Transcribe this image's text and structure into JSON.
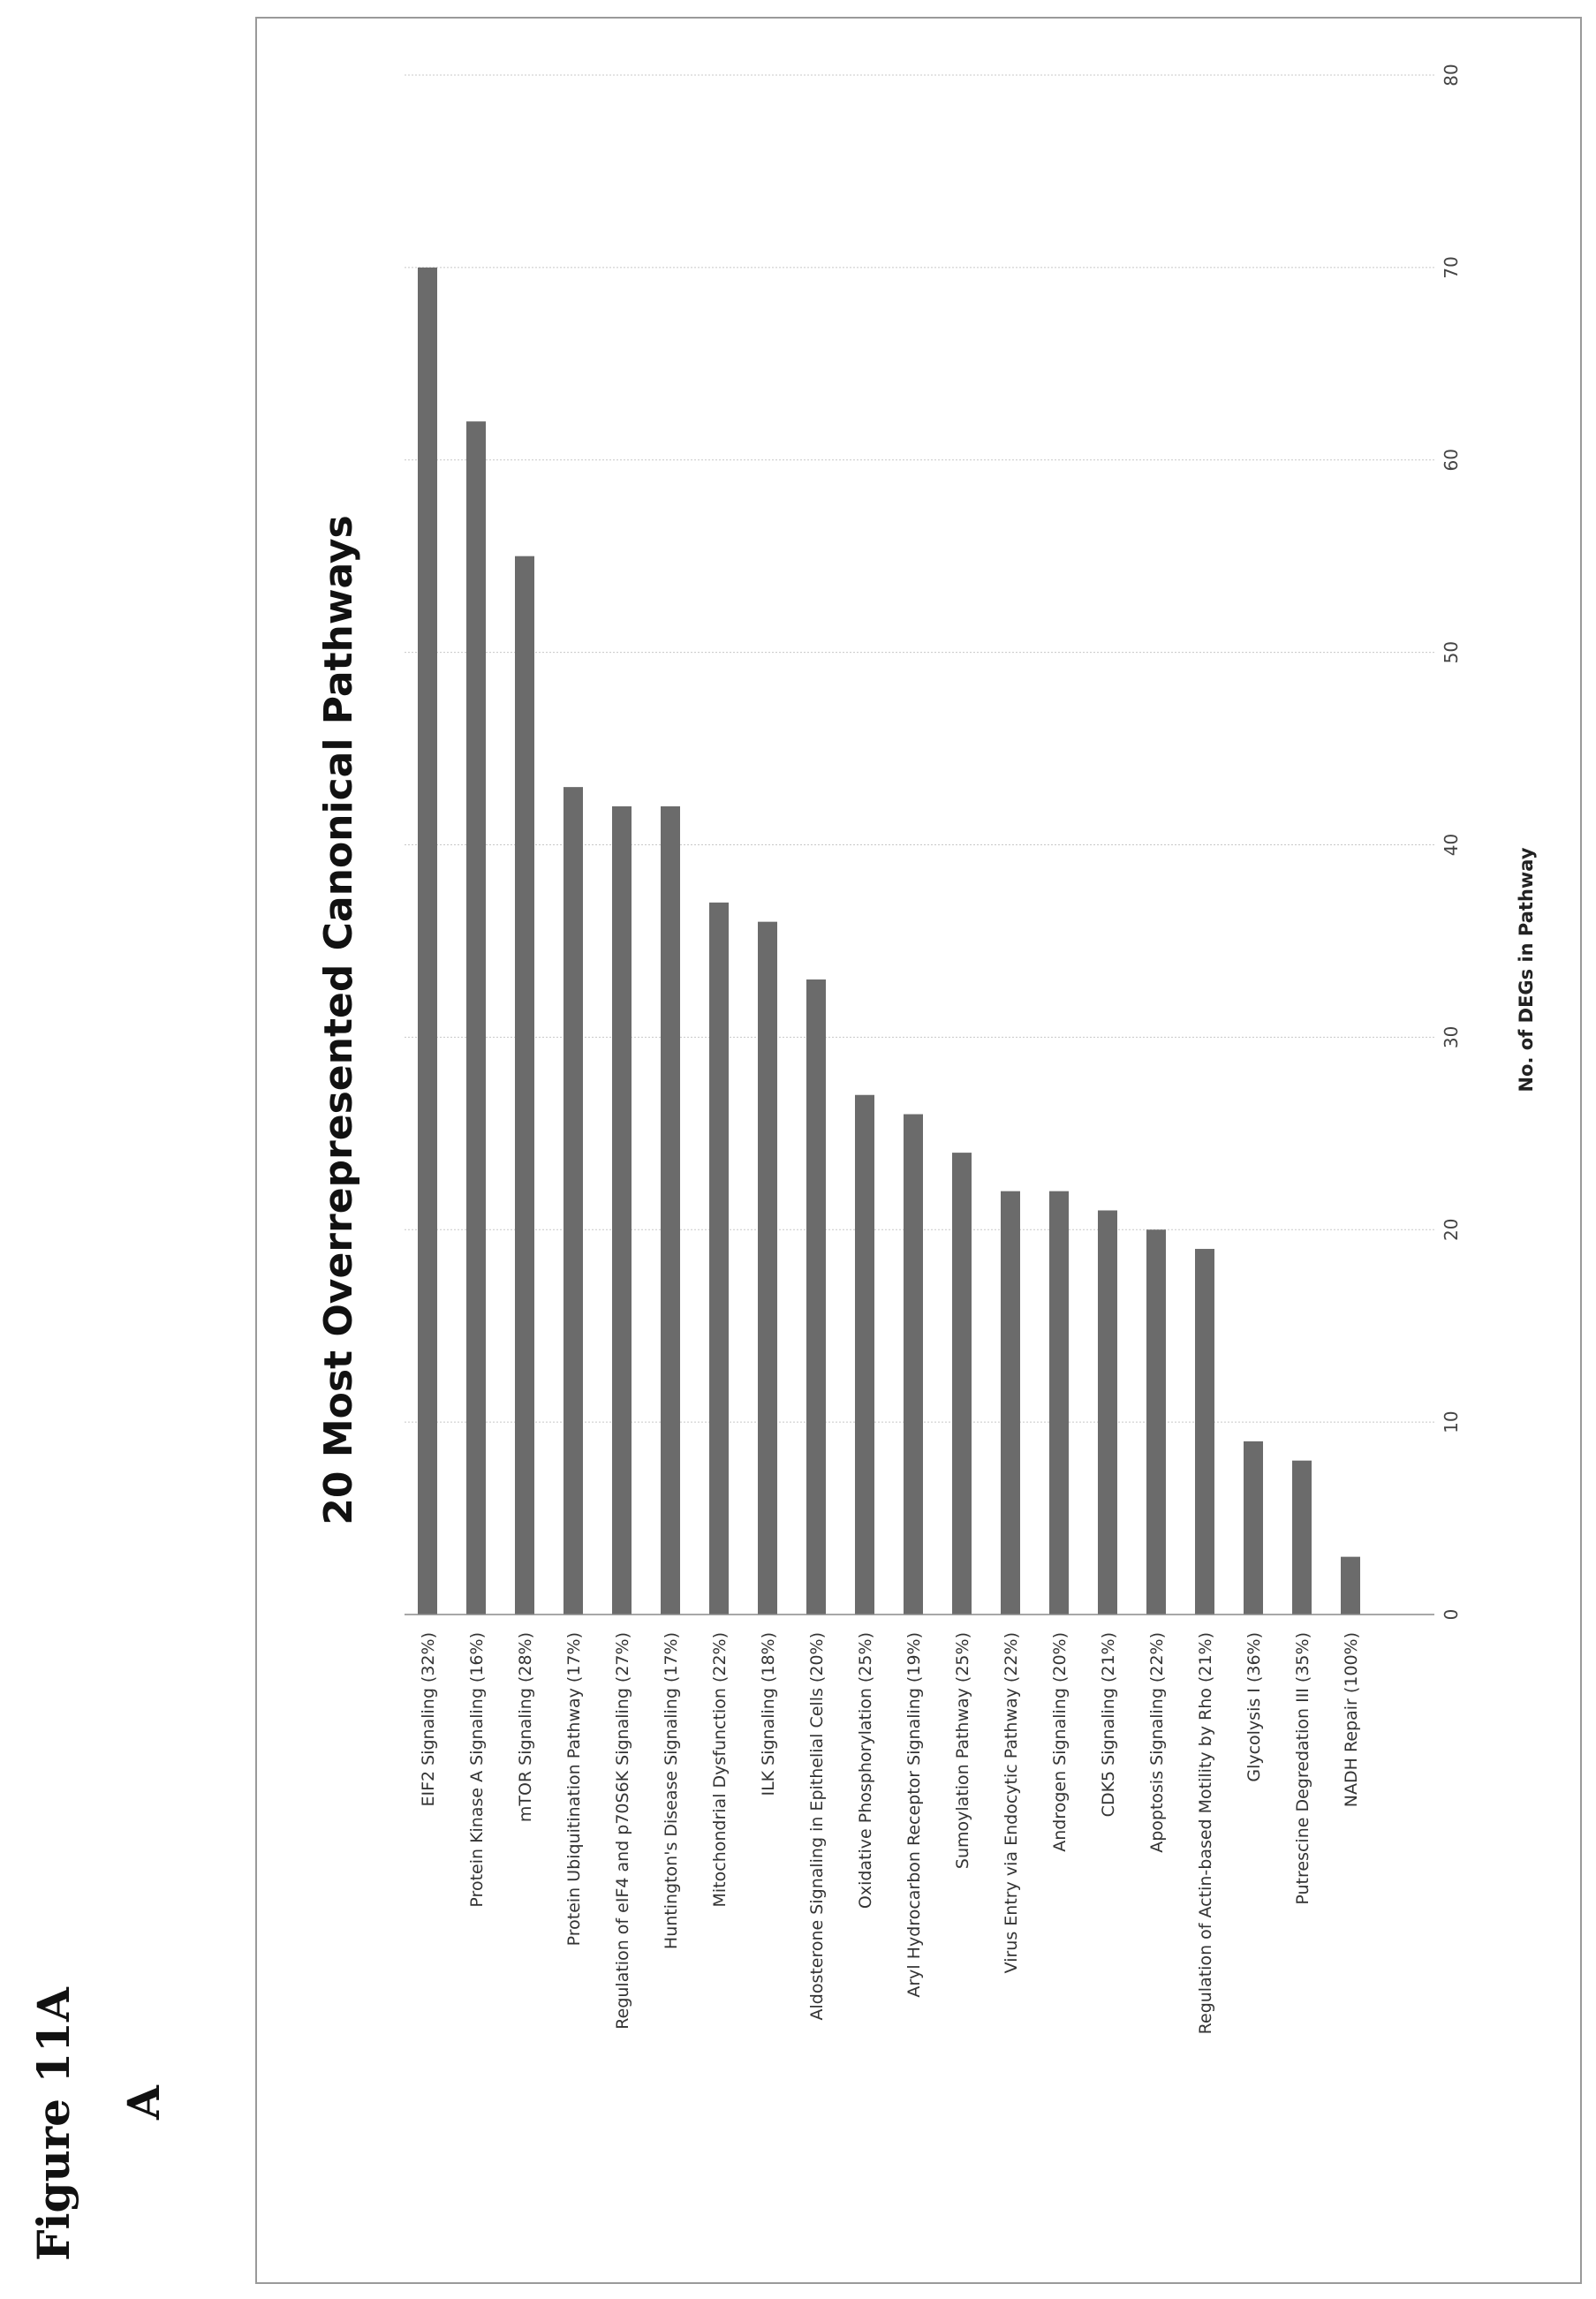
{
  "figure": {
    "label": "Figure 11A",
    "panel": "A"
  },
  "chart_data": {
    "type": "bar",
    "orientation": "horizontal",
    "title": "20 Most Overrepresented Canonical Pathways",
    "xlabel": "No. of DEGs in Pathway",
    "ylabel": "",
    "xlim": [
      0,
      80
    ],
    "ticks": [
      0,
      10,
      20,
      30,
      40,
      50,
      60,
      70,
      80
    ],
    "grid": true,
    "legend": "none",
    "bar_color": "#6b6b6b",
    "categories": [
      "EIF2 Signaling (32%)",
      "Protein Kinase A Signaling (16%)",
      "mTOR Signaling (28%)",
      "Protein Ubiquitination Pathway (17%)",
      "Regulation of eIF4 and p70S6K Signaling (27%)",
      "Huntington's Disease Signaling (17%)",
      "Mitochondrial Dysfunction (22%)",
      "ILK Signaling (18%)",
      "Aldosterone Signaling in Epithelial Cells (20%)",
      "Oxidative Phosphorylation (25%)",
      "Aryl Hydrocarbon Receptor Signaling (19%)",
      "Sumoylation Pathway (25%)",
      "Virus Entry via Endocytic Pathway (22%)",
      "Androgen Signaling (20%)",
      "CDK5 Signaling (21%)",
      "Apoptosis Signaling (22%)",
      "Regulation of Actin-based Motility by Rho (21%)",
      "Glycolysis I (36%)",
      "Putrescine Degredation III (35%)",
      "NADH Repair (100%)"
    ],
    "values": [
      70,
      62,
      55,
      43,
      42,
      42,
      37,
      36,
      33,
      27,
      26,
      24,
      22,
      22,
      21,
      20,
      19,
      9,
      8,
      3
    ]
  }
}
